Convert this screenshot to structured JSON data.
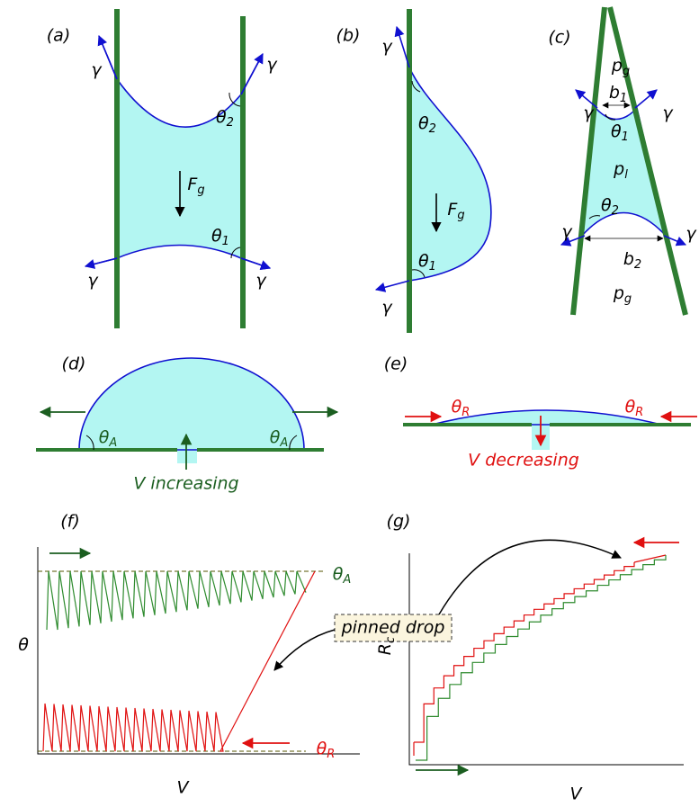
{
  "panels": {
    "a": {
      "label": "(a)",
      "gamma": [
        "γ",
        "γ",
        "γ",
        "γ"
      ],
      "theta_top": {
        "base": "θ",
        "sub": "2"
      },
      "theta_bottom": {
        "base": "θ",
        "sub": "1"
      },
      "force": {
        "base": "F",
        "sub": "g"
      }
    },
    "b": {
      "label": "(b)",
      "gamma": [
        "γ",
        "γ"
      ],
      "theta_top": {
        "base": "θ",
        "sub": "2"
      },
      "theta_bottom": {
        "base": "θ",
        "sub": "1"
      },
      "force": {
        "base": "F",
        "sub": "g"
      }
    },
    "c": {
      "label": "(c)",
      "gamma": [
        "γ",
        "γ",
        "γ",
        "γ"
      ],
      "pressure_top": {
        "base": "p",
        "sub": "g"
      },
      "width_top": {
        "base": "b",
        "sub": "1"
      },
      "theta_top": {
        "base": "θ",
        "sub": "1"
      },
      "pressure_liquid": {
        "base": "p",
        "sub": "l"
      },
      "theta_bottom": {
        "base": "θ",
        "sub": "2"
      },
      "width_bottom": {
        "base": "b",
        "sub": "2"
      },
      "pressure_bottom": {
        "base": "p",
        "sub": "g"
      }
    },
    "d": {
      "label": "(d)",
      "angles": [
        {
          "base": "θ",
          "sub": "A"
        },
        {
          "base": "θ",
          "sub": "A"
        }
      ],
      "caption": "V increasing"
    },
    "e": {
      "label": "(e)",
      "angles": [
        {
          "base": "θ",
          "sub": "R"
        },
        {
          "base": "θ",
          "sub": "R"
        }
      ],
      "caption": "V decreasing"
    },
    "f": {
      "label": "(f)",
      "y_label": "θ",
      "x_label": "V",
      "advancing": {
        "base": "θ",
        "sub": "A"
      },
      "receding": {
        "base": "θ",
        "sub": "R"
      },
      "annotation": "pinned drop"
    },
    "g": {
      "label": "(g)",
      "y_label": {
        "base": "R",
        "sub": "c"
      },
      "x_label": "V"
    }
  }
}
